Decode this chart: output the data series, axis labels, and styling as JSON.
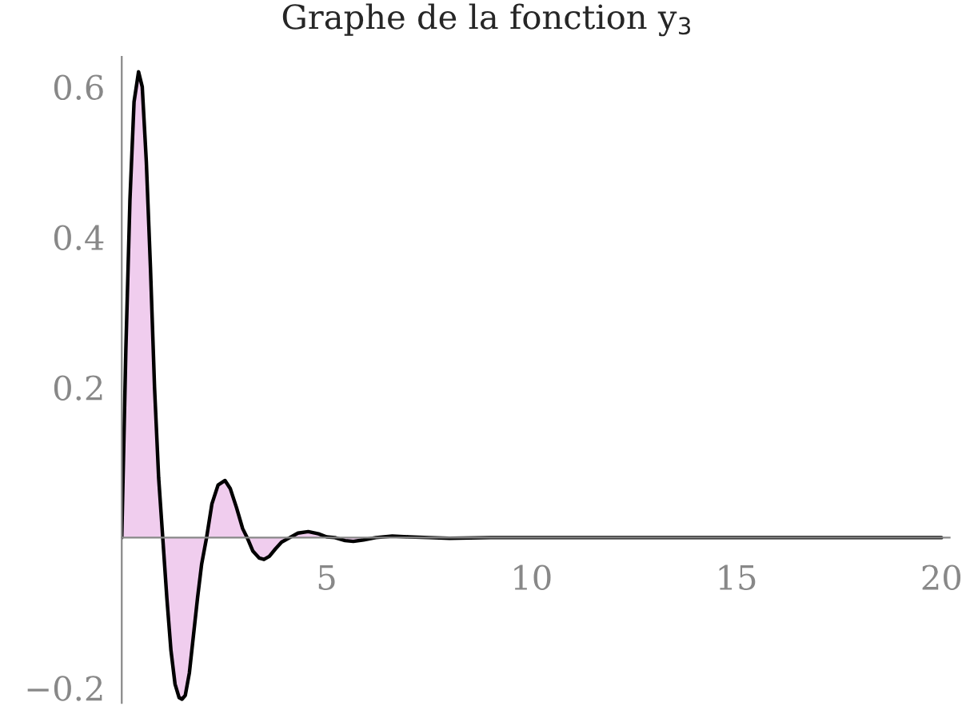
{
  "chart_data": {
    "type": "area",
    "title": "Graphe de la fonction y$_{3}$",
    "x": [
      0,
      0.1,
      0.2,
      0.3,
      0.41,
      0.5,
      0.6,
      0.7,
      0.8,
      0.9,
      1.0,
      1.1,
      1.2,
      1.3,
      1.4,
      1.47,
      1.55,
      1.65,
      1.75,
      1.85,
      1.95,
      2.07,
      2.2,
      2.35,
      2.52,
      2.65,
      2.8,
      2.95,
      3.06,
      3.2,
      3.35,
      3.47,
      3.6,
      3.75,
      3.9,
      4.1,
      4.3,
      4.55,
      4.8,
      5.0,
      5.2,
      5.45,
      5.65,
      5.9,
      6.2,
      6.6,
      7.0,
      7.5,
      8,
      9,
      10,
      12,
      15,
      20
    ],
    "series": [
      {
        "color": "#f0cdee",
        "values": [
          0,
          0.25,
          0.45,
          0.58,
          0.62,
          0.6,
          0.5,
          0.36,
          0.2,
          0.08,
          0,
          -0.08,
          -0.15,
          -0.195,
          -0.213,
          -0.215,
          -0.21,
          -0.18,
          -0.13,
          -0.08,
          -0.035,
          0,
          0.045,
          0.07,
          0.076,
          0.065,
          0.04,
          0.012,
          0,
          -0.018,
          -0.027,
          -0.029,
          -0.025,
          -0.015,
          -0.006,
          0,
          0.006,
          0.008,
          0.005,
          0.001,
          0,
          -0.004,
          -0.005,
          -0.003,
          0,
          0.002,
          0.001,
          0,
          -0.001,
          0,
          0,
          0,
          0,
          0
        ]
      }
    ],
    "xlim": [
      0,
      20.2
    ],
    "ylim": [
      -0.22,
      0.64
    ],
    "xticks": [
      5,
      10,
      15,
      20
    ],
    "yticks": [
      {
        "value": -0.2,
        "label": "−0.2"
      },
      0.2,
      0.4,
      0.6
    ],
    "grid": false
  }
}
